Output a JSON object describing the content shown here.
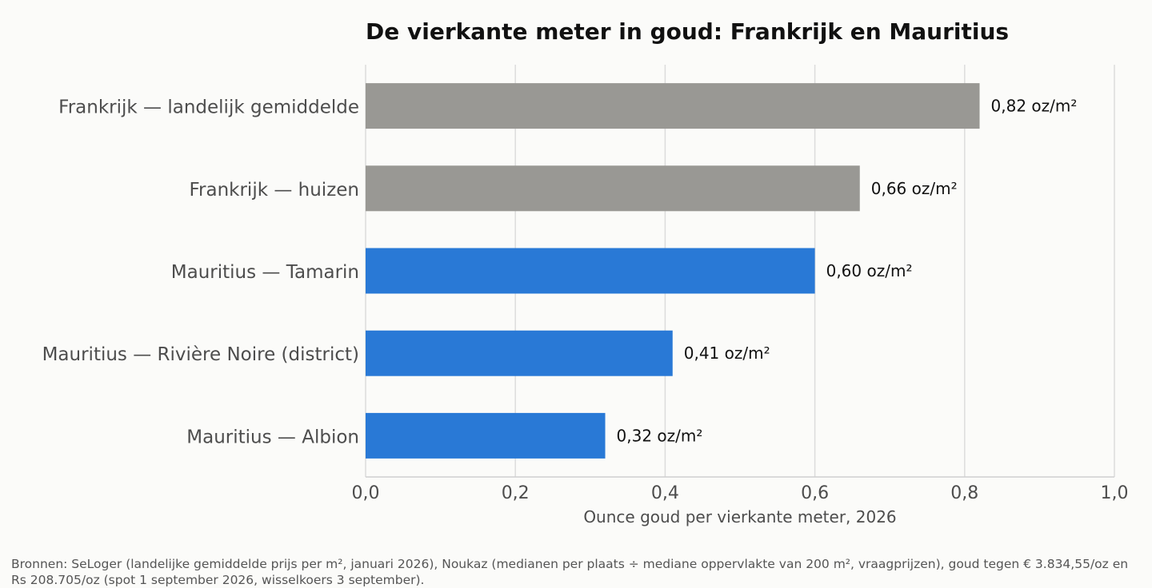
{
  "chart_data": {
    "type": "bar",
    "orientation": "horizontal",
    "title": "De vierkante meter in goud: Frankrijk en Mauritius",
    "xlabel": "Ounce goud per vierkante meter, 2026",
    "ylabel": "",
    "xlim": [
      0,
      1.0
    ],
    "x_ticks": [
      "0,0",
      "0,2",
      "0,4",
      "0,6",
      "0,8",
      "1,0"
    ],
    "grid": "vertical",
    "categories": [
      "Frankrijk — landelijk gemiddelde",
      "Frankrijk — huizen",
      "Mauritius — Tamarin",
      "Mauritius — Rivière Noire (district)",
      "Mauritius — Albion"
    ],
    "values": [
      0.82,
      0.66,
      0.6,
      0.41,
      0.32
    ],
    "value_labels": [
      "0,82 oz/m²",
      "0,66 oz/m²",
      "0,60 oz/m²",
      "0,41 oz/m²",
      "0,32 oz/m²"
    ],
    "bar_colors": [
      "#999894",
      "#999894",
      "#2979d6",
      "#2979d6",
      "#2979d6"
    ]
  },
  "colors": {
    "france": "#999894",
    "mauritius": "#2979d6",
    "grid": "#dcdcdc",
    "label_text": "#4d4d4d",
    "title_text": "#111111"
  },
  "source_note": "Bronnen: SeLoger (landelijke gemiddelde prijs per m², januari 2026), Noukaz (medianen per plaats ÷ mediane oppervlakte van 200 m², vraagprijzen), goud tegen € 3.834,55/oz en Rs 208.705/oz (spot 1 september 2026, wisselkoers 3 september)."
}
